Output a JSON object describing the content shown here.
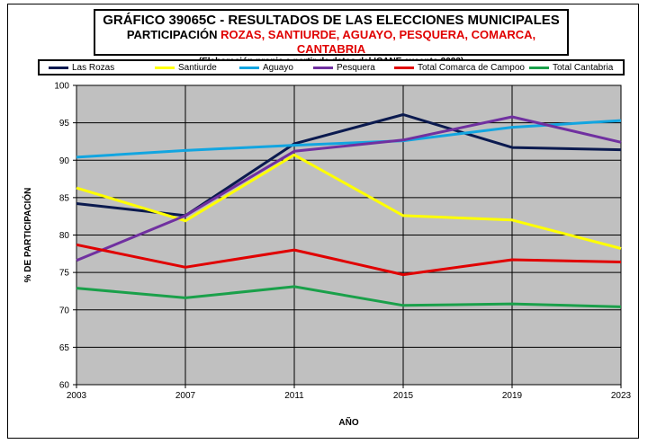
{
  "title": {
    "line1": "GRÁFICO 39065C - RESULTADOS DE LAS ELECCIONES MUNICIPALES",
    "line2_prefix": "PARTICIPACIÓN ",
    "line2_names": "ROZAS, SANTIURDE, AGUAYO, PESQUERA, COMARCA, CANTABRIA",
    "line3": "(Elaboración propia a partir de datos del ICANE excepto 2023)"
  },
  "chart_data": {
    "type": "line",
    "x": [
      "2003",
      "2007",
      "2011",
      "2015",
      "2019",
      "2023"
    ],
    "xlabel": "AÑO",
    "ylabel": "% DE PARTICIPACIÓN",
    "ylim": [
      60,
      100
    ],
    "yticks": [
      "60",
      "65",
      "70",
      "75",
      "80",
      "85",
      "90",
      "95",
      "100"
    ],
    "grid": true,
    "legend_position": "top",
    "series": [
      {
        "name": "Las Rozas",
        "color": "#0b1a4f",
        "values": [
          84.2,
          82.6,
          92.2,
          96.1,
          91.7,
          91.4
        ]
      },
      {
        "name": "Santiurde",
        "color": "#ffff00",
        "values": [
          86.3,
          81.9,
          90.7,
          82.6,
          82.0,
          78.2
        ]
      },
      {
        "name": "Aguayo",
        "color": "#12a5e0",
        "values": [
          90.4,
          91.3,
          92.0,
          92.6,
          94.4,
          95.3
        ]
      },
      {
        "name": "Pesquera",
        "color": "#7030a0",
        "values": [
          76.6,
          82.6,
          91.2,
          92.7,
          95.8,
          92.4
        ]
      },
      {
        "name": "Total Comarca de Campoo",
        "color": "#e00000",
        "values": [
          78.7,
          75.7,
          78.0,
          74.7,
          76.7,
          76.4
        ]
      },
      {
        "name": "Total Cantabria",
        "color": "#1aa04a",
        "values": [
          72.9,
          71.6,
          73.1,
          70.6,
          70.8,
          70.4
        ]
      }
    ]
  }
}
